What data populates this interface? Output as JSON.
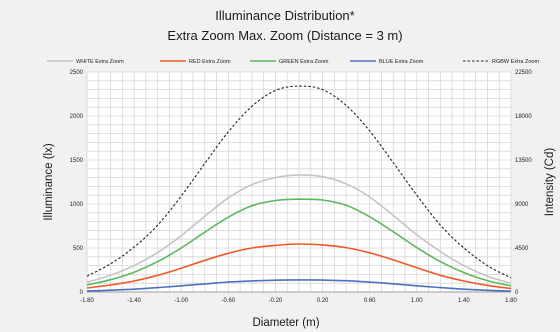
{
  "chart_data": {
    "type": "line",
    "title": "Illuminance Distribution*",
    "subtitle": "Extra Zoom Max. Zoom (Distance = 3 m)",
    "xlabel": "Diameter (m)",
    "ylabel": "Illuminance (lx)",
    "y2label": "Intensity (Cd)",
    "xlim": [
      -1.8,
      1.8
    ],
    "ylim": [
      0,
      2500
    ],
    "y2lim": [
      0,
      22500
    ],
    "x_ticks": [
      "-1.80",
      "-1.40",
      "-1.00",
      "-0.60",
      "-0.20",
      "0.20",
      "0.60",
      "1.00",
      "1.40",
      "1.80"
    ],
    "y_ticks": [
      "0",
      "500",
      "1000",
      "1500",
      "2000",
      "2500"
    ],
    "y2_ticks": [
      "0",
      "4500",
      "9000",
      "13500",
      "18000",
      "22500"
    ],
    "grid": true,
    "legend_position": "top",
    "x": [
      -1.8,
      -1.6,
      -1.4,
      -1.2,
      -1.0,
      -0.8,
      -0.6,
      -0.4,
      -0.2,
      0.0,
      0.2,
      0.4,
      0.6,
      0.8,
      1.0,
      1.2,
      1.4,
      1.6,
      1.8
    ],
    "series": [
      {
        "name": "WHITE Extra Zoom",
        "color": "#c4c4c4",
        "dash": "solid",
        "values": [
          110,
          190,
          300,
          450,
          640,
          860,
          1070,
          1220,
          1300,
          1330,
          1310,
          1230,
          1080,
          870,
          650,
          460,
          300,
          180,
          100
        ]
      },
      {
        "name": "RED Extra Zoom",
        "color": "#f05a28",
        "dash": "solid",
        "values": [
          45,
          80,
          125,
          190,
          270,
          360,
          440,
          500,
          530,
          545,
          535,
          505,
          445,
          365,
          275,
          190,
          125,
          75,
          40
        ]
      },
      {
        "name": "GREEN Extra Zoom",
        "color": "#5cb85c",
        "dash": "solid",
        "values": [
          80,
          140,
          225,
          345,
          500,
          680,
          850,
          980,
          1040,
          1055,
          1045,
          985,
          855,
          685,
          505,
          345,
          220,
          130,
          70
        ]
      },
      {
        "name": "BLUE Extra Zoom",
        "color": "#4a72c4",
        "dash": "solid",
        "values": [
          10,
          20,
          32,
          50,
          70,
          92,
          112,
          126,
          134,
          137,
          135,
          128,
          113,
          93,
          70,
          50,
          32,
          19,
          10
        ]
      },
      {
        "name": "RGBW Extra Zoom",
        "color": "#222222",
        "dash": "dashed",
        "values": [
          180,
          320,
          510,
          760,
          1090,
          1460,
          1820,
          2110,
          2290,
          2340,
          2300,
          2120,
          1830,
          1470,
          1100,
          760,
          500,
          300,
          160
        ]
      }
    ]
  }
}
